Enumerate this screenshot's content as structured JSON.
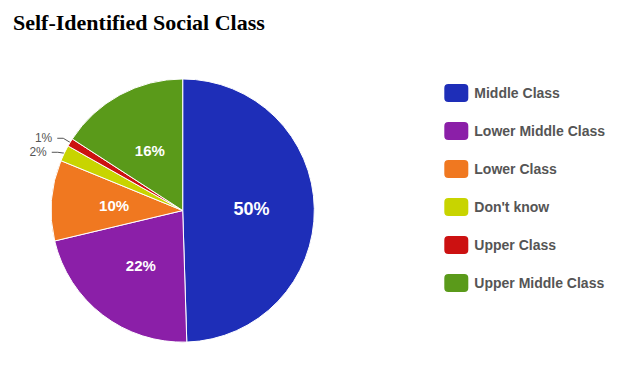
{
  "chart_data": {
    "type": "pie",
    "title": "Self-Identified Social Class",
    "categories": [
      "Middle Class",
      "Lower Middle Class",
      "Lower Class",
      "Don't know",
      "Upper Class",
      "Upper Middle Class"
    ],
    "values": [
      50,
      22,
      10,
      2,
      1,
      16
    ],
    "value_labels": [
      "50%",
      "22%",
      "10%",
      "2%",
      "1%",
      "16%"
    ],
    "colors": [
      "#1e2eb8",
      "#8b1fa8",
      "#f07820",
      "#c8d400",
      "#cc1111",
      "#5a9a1a"
    ],
    "data_labels": true,
    "legend": "right"
  }
}
